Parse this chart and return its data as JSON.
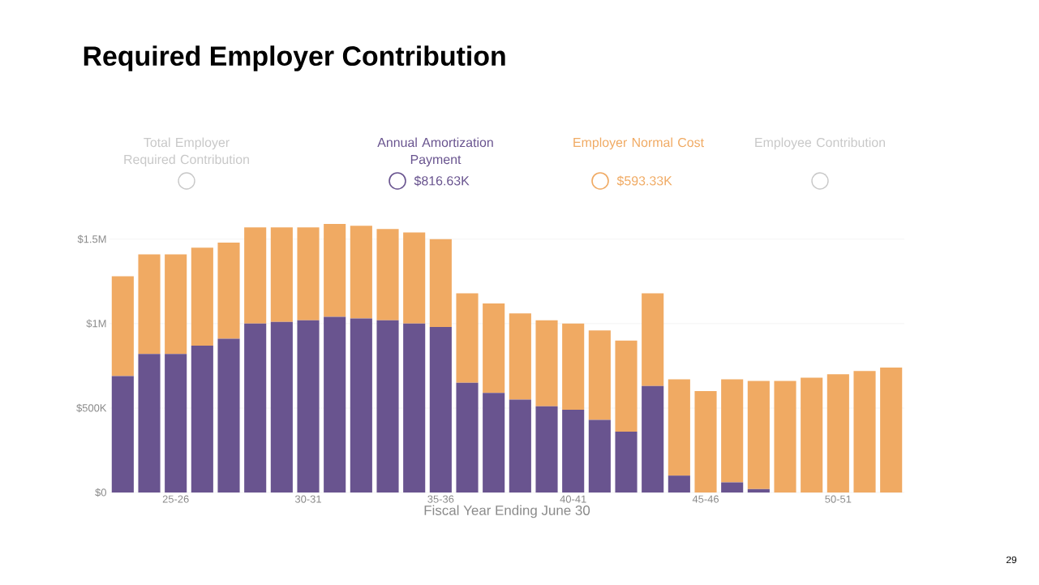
{
  "chart_data": {
    "type": "bar",
    "title": "Required Employer Contribution",
    "xlabel": "Fiscal Year Ending June 30",
    "stacked": true,
    "grid": "y",
    "legend": "top",
    "categories": [
      null,
      null,
      "25-26",
      null,
      null,
      null,
      null,
      "30-31",
      null,
      null,
      null,
      null,
      "35-36",
      null,
      null,
      null,
      null,
      "40-41",
      null,
      null,
      null,
      null,
      "45-46",
      null,
      null,
      null,
      null,
      "50-51",
      null,
      null
    ],
    "ylim": [
      0,
      1600000
    ],
    "yticks": [
      {
        "value": 0,
        "label": "$0"
      },
      {
        "value": 500000,
        "label": "$500K"
      },
      {
        "value": 1000000,
        "label": "$1M"
      },
      {
        "value": 1500000,
        "label": "$1.5M"
      }
    ],
    "series": [
      {
        "name": "Annual Amortization Payment",
        "color": "#69548f",
        "values": [
          690000,
          820000,
          820000,
          870000,
          910000,
          1000000,
          1010000,
          1020000,
          1040000,
          1030000,
          1020000,
          1000000,
          980000,
          650000,
          590000,
          550000,
          510000,
          490000,
          430000,
          360000,
          630000,
          100000,
          0,
          60000,
          20000,
          0,
          0,
          0,
          0,
          0
        ]
      },
      {
        "name": "Employer Normal Cost",
        "color": "#f0aa63",
        "values": [
          590000,
          590000,
          590000,
          580000,
          570000,
          570000,
          560000,
          550000,
          550000,
          550000,
          540000,
          540000,
          520000,
          530000,
          530000,
          510000,
          510000,
          510000,
          530000,
          540000,
          550000,
          570000,
          600000,
          610000,
          640000,
          660000,
          680000,
          700000,
          720000,
          740000
        ]
      }
    ],
    "annotations": [
      "Total Employer Required Contribution",
      "Employee Contribution",
      "$816.63K",
      "$593.33K",
      "29"
    ]
  }
}
